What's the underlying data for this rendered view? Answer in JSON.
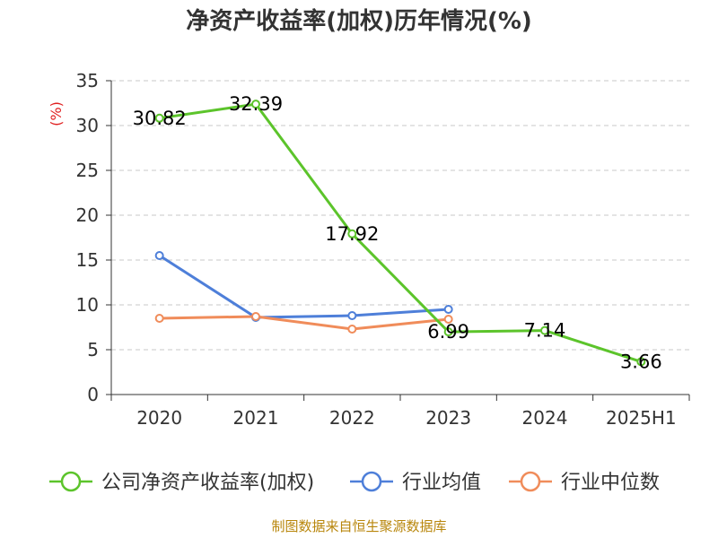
{
  "chart_data": {
    "type": "line",
    "title": "净资产收益率(加权)历年情况(%)",
    "ylabel": "(%)",
    "categories": [
      "2020",
      "2021",
      "2022",
      "2023",
      "2024",
      "2025H1"
    ],
    "ylim": [
      0,
      35
    ],
    "yticks": [
      "0",
      "5",
      "10",
      "15",
      "20",
      "25",
      "30",
      "35"
    ],
    "grid": "horizontal dashed",
    "legend_position": "bottom",
    "series": [
      {
        "name": "公司净资产收益率(加权)",
        "color": "#5cc42b",
        "values": [
          30.82,
          32.39,
          17.92,
          6.99,
          7.14,
          3.66
        ],
        "labels": [
          "30.82",
          "32.39",
          "17.92",
          "6.99",
          "7.14",
          "3.66"
        ]
      },
      {
        "name": "行业均值",
        "color": "#4e7fd9",
        "values": [
          15.5,
          8.6,
          8.8,
          9.5,
          null,
          null
        ]
      },
      {
        "name": "行业中位数",
        "color": "#f08c5a",
        "values": [
          8.5,
          8.7,
          7.3,
          8.4,
          null,
          null
        ]
      }
    ],
    "source": "制图数据来自恒生聚源数据库"
  }
}
